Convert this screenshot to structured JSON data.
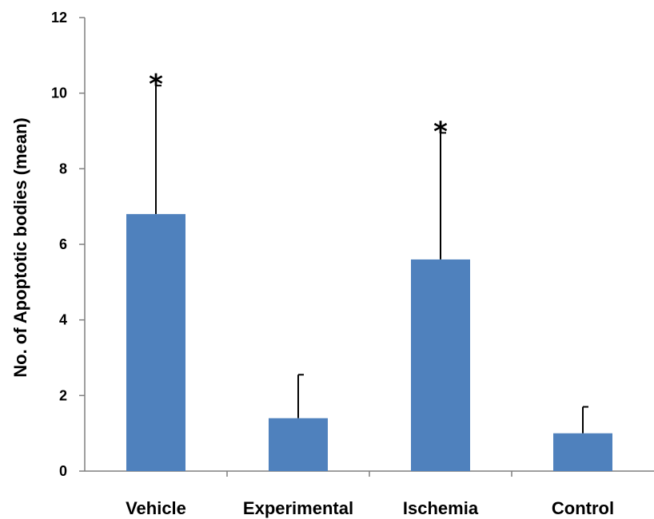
{
  "chart_data": {
    "type": "bar",
    "title": "",
    "xlabel": "",
    "ylabel": "No. of Apoptotic bodies (mean)",
    "ylim": [
      0,
      12
    ],
    "yticks": [
      0,
      2,
      4,
      6,
      8,
      10,
      12
    ],
    "categories": [
      "Vehicle",
      "Experimental",
      "Ischemia",
      "Control"
    ],
    "values": [
      6.8,
      1.4,
      5.6,
      1.0
    ],
    "error_upper": [
      3.4,
      1.15,
      3.35,
      0.7
    ],
    "annotations": [
      "*",
      "",
      "*",
      ""
    ],
    "grid": false,
    "legend": "none",
    "bar_color": "#4f81bd",
    "axis_color": "#7f7f7f"
  }
}
